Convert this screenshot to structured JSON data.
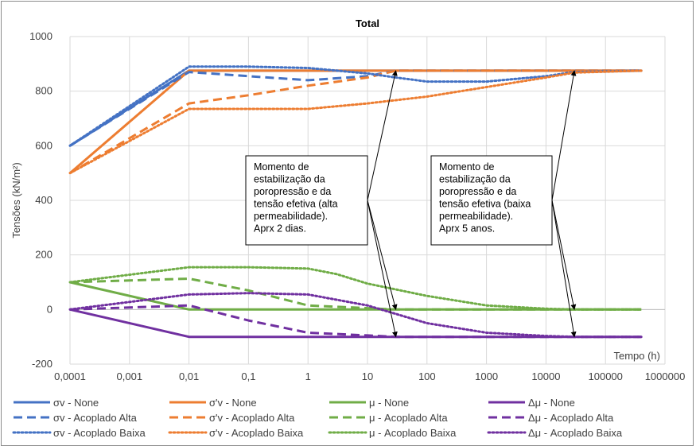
{
  "chart_data": {
    "type": "line",
    "title": "Total",
    "xlabel": "Tempo (h)",
    "ylabel": "Tensões (kN/m²)",
    "xscale": "log",
    "xlim": [
      0.0001,
      1000000
    ],
    "ylim": [
      -200,
      1000
    ],
    "x_ticks": [
      "0,0001",
      "0,001",
      "0,01",
      "0,1",
      "1",
      "10",
      "100",
      "1000",
      "10000",
      "100000",
      "1000000"
    ],
    "y_ticks": [
      "-200",
      "0",
      "200",
      "400",
      "600",
      "800",
      "1000"
    ],
    "grid": true,
    "legend_position": "bottom",
    "colors": {
      "sigma_v": "#4472c4",
      "sigma_v_eff": "#ed7d31",
      "mu": "#70ad47",
      "delta_mu": "#7030a0",
      "gridline": "#d9d9d9"
    },
    "series": [
      {
        "name": "σv  - None",
        "color": "#4472c4",
        "dash": "solid",
        "x": [
          0.0001,
          0.01,
          400000
        ],
        "y": [
          600,
          875,
          875
        ]
      },
      {
        "name": "σ'v - None",
        "color": "#ed7d31",
        "dash": "solid",
        "x": [
          0.0001,
          0.01,
          400000
        ],
        "y": [
          500,
          875,
          875
        ]
      },
      {
        "name": "μ - None",
        "color": "#70ad47",
        "dash": "solid",
        "x": [
          0.0001,
          0.01,
          400000
        ],
        "y": [
          100,
          0,
          0
        ]
      },
      {
        "name": "Δμ - None",
        "color": "#7030a0",
        "dash": "solid",
        "x": [
          0.0001,
          0.01,
          400000
        ],
        "y": [
          0,
          -100,
          -100
        ]
      },
      {
        "name": "σv  - Acoplado Alta",
        "color": "#4472c4",
        "dash": "dash",
        "x": [
          0.0001,
          0.01,
          0.1,
          1,
          10,
          30,
          400000
        ],
        "y": [
          600,
          870,
          855,
          840,
          855,
          875,
          875
        ]
      },
      {
        "name": "σ'v - Acoplado Alta",
        "color": "#ed7d31",
        "dash": "dash",
        "x": [
          0.0001,
          0.01,
          0.1,
          1,
          10,
          30,
          400000
        ],
        "y": [
          500,
          755,
          785,
          820,
          850,
          875,
          875
        ]
      },
      {
        "name": "μ - Acoplado Alta",
        "color": "#70ad47",
        "dash": "dash",
        "x": [
          0.0001,
          0.01,
          0.1,
          1,
          10,
          30,
          400000
        ],
        "y": [
          100,
          113,
          70,
          15,
          5,
          0,
          0
        ]
      },
      {
        "name": "Δμ - Acoplado Alta",
        "color": "#7030a0",
        "dash": "dash",
        "x": [
          0.0001,
          0.01,
          0.1,
          1,
          10,
          30,
          400000
        ],
        "y": [
          0,
          15,
          -40,
          -85,
          -95,
          -100,
          -100
        ]
      },
      {
        "name": "σv  - Acoplado Baixa",
        "color": "#4472c4",
        "dash": "dot",
        "x": [
          0.0001,
          0.01,
          0.1,
          1,
          10,
          30,
          100,
          1000,
          10000,
          30000,
          400000
        ],
        "y": [
          600,
          890,
          890,
          885,
          865,
          850,
          835,
          835,
          855,
          870,
          875
        ]
      },
      {
        "name": "σ'v - Acoplado Baixa",
        "color": "#ed7d31",
        "dash": "dot",
        "x": [
          0.0001,
          0.01,
          0.1,
          1,
          10,
          100,
          1000,
          10000,
          30000,
          400000
        ],
        "y": [
          500,
          735,
          735,
          735,
          755,
          780,
          815,
          850,
          868,
          875
        ]
      },
      {
        "name": "μ - Acoplado Baixa",
        "color": "#70ad47",
        "dash": "dot",
        "x": [
          0.0001,
          0.01,
          0.1,
          1,
          3,
          10,
          100,
          1000,
          10000,
          30000,
          400000
        ],
        "y": [
          100,
          155,
          155,
          150,
          130,
          95,
          50,
          15,
          3,
          0,
          0
        ]
      },
      {
        "name": "Δμ - Acoplado Baixa",
        "color": "#7030a0",
        "dash": "dot",
        "x": [
          0.0001,
          0.01,
          0.1,
          1,
          10,
          100,
          1000,
          10000,
          30000,
          400000
        ],
        "y": [
          0,
          55,
          60,
          55,
          15,
          -50,
          -85,
          -97,
          -100,
          -100
        ]
      }
    ],
    "annotations": [
      {
        "lines": [
          "Momento de",
          "estabilização da",
          "poropressão e da",
          "tensão efetiva (alta",
          "permeabilidade).",
          "Aprx 2 dias."
        ],
        "arrow_targets": [
          [
            30,
            875
          ],
          [
            30,
            0
          ],
          [
            30,
            -100
          ]
        ]
      },
      {
        "lines": [
          "Momento de",
          "estabilização da",
          "poropressão e da",
          "tensão efetiva (baixa",
          "permeabilidade).",
          "Aprx 5 anos."
        ],
        "arrow_targets": [
          [
            30000,
            875
          ],
          [
            30000,
            0
          ],
          [
            30000,
            -100
          ]
        ]
      }
    ]
  }
}
